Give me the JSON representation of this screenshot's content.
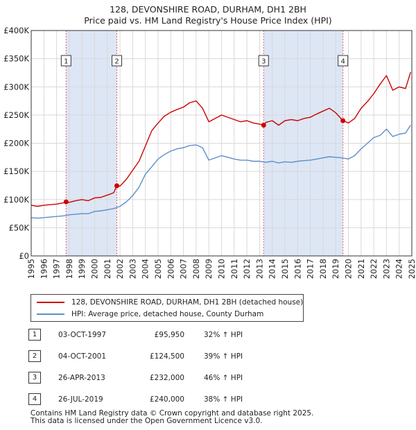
{
  "chart_data": {
    "type": "line",
    "title": "128, DEVONSHIRE ROAD, DURHAM, DH1 2BH",
    "subtitle": "Price paid vs. HM Land Registry's House Price Index (HPI)",
    "xlim": [
      1995,
      2025
    ],
    "ylim": [
      0,
      400000
    ],
    "x_ticks": [
      "1995",
      "1996",
      "1997",
      "1998",
      "1999",
      "2000",
      "2001",
      "2002",
      "2003",
      "2004",
      "2005",
      "2006",
      "2007",
      "2008",
      "2009",
      "2010",
      "2011",
      "2012",
      "2013",
      "2014",
      "2015",
      "2016",
      "2017",
      "2018",
      "2019",
      "2020",
      "2021",
      "2022",
      "2023",
      "2024",
      "2025"
    ],
    "y_ticks": [
      {
        "value": 0,
        "label": "£0"
      },
      {
        "value": 50000,
        "label": "£50K"
      },
      {
        "value": 100000,
        "label": "£100K"
      },
      {
        "value": 150000,
        "label": "£150K"
      },
      {
        "value": 200000,
        "label": "£200K"
      },
      {
        "value": 250000,
        "label": "£250K"
      },
      {
        "value": 300000,
        "label": "£300K"
      },
      {
        "value": 350000,
        "label": "£350K"
      },
      {
        "value": 400000,
        "label": "£400K"
      }
    ],
    "grid": true,
    "colors": {
      "property": "#cc0000",
      "hpi": "#5b8fc9",
      "shade": "#dde6f5",
      "vline": "#e06060"
    },
    "shaded_periods": [
      [
        1997.75,
        2001.75
      ],
      [
        2013.32,
        2019.57
      ]
    ],
    "series": [
      {
        "name": "128, DEVONSHIRE ROAD, DURHAM, DH1 2BH (detached house)",
        "color": "#cc0000",
        "x": [
          1995.0,
          1995.5,
          1996.0,
          1996.5,
          1997.0,
          1997.5,
          1997.75,
          1998.0,
          1998.5,
          1999.0,
          1999.5,
          2000.0,
          2000.5,
          2001.0,
          2001.5,
          2001.75,
          2002.0,
          2002.5,
          2003.0,
          2003.5,
          2004.0,
          2004.5,
          2005.0,
          2005.5,
          2006.0,
          2006.5,
          2007.0,
          2007.5,
          2008.0,
          2008.5,
          2009.0,
          2009.5,
          2010.0,
          2010.5,
          2011.0,
          2011.5,
          2012.0,
          2012.5,
          2013.0,
          2013.32,
          2013.5,
          2014.0,
          2014.5,
          2015.0,
          2015.5,
          2016.0,
          2016.5,
          2017.0,
          2017.5,
          2018.0,
          2018.5,
          2019.0,
          2019.57,
          2020.0,
          2020.5,
          2021.0,
          2021.5,
          2022.0,
          2022.5,
          2023.0,
          2023.5,
          2024.0,
          2024.5,
          2024.9
        ],
        "values": [
          90000,
          88000,
          90000,
          91000,
          92000,
          94000,
          95950,
          95000,
          98000,
          100000,
          98000,
          103000,
          104000,
          108000,
          112000,
          124500,
          124000,
          136000,
          152000,
          168000,
          195000,
          222000,
          236000,
          248000,
          255000,
          260000,
          264000,
          272000,
          275000,
          262000,
          238000,
          244000,
          250000,
          246000,
          242000,
          238000,
          240000,
          236000,
          234000,
          232000,
          237000,
          240000,
          232000,
          240000,
          242000,
          240000,
          244000,
          246000,
          252000,
          257000,
          262000,
          254000,
          240000,
          236000,
          244000,
          262000,
          274000,
          288000,
          305000,
          320000,
          294000,
          300000,
          297000,
          326000
        ]
      },
      {
        "name": "HPI: Average price, detached house, County Durham",
        "color": "#5b8fc9",
        "x": [
          1995.0,
          1995.5,
          1996.0,
          1996.5,
          1997.0,
          1997.5,
          1998.0,
          1998.5,
          1999.0,
          1999.5,
          2000.0,
          2000.5,
          2001.0,
          2001.5,
          2002.0,
          2002.5,
          2003.0,
          2003.5,
          2004.0,
          2004.5,
          2005.0,
          2005.5,
          2006.0,
          2006.5,
          2007.0,
          2007.5,
          2008.0,
          2008.5,
          2009.0,
          2009.5,
          2010.0,
          2010.5,
          2011.0,
          2011.5,
          2012.0,
          2012.5,
          2013.0,
          2013.5,
          2014.0,
          2014.5,
          2015.0,
          2015.5,
          2016.0,
          2016.5,
          2017.0,
          2017.5,
          2018.0,
          2018.5,
          2019.0,
          2019.5,
          2020.0,
          2020.5,
          2021.0,
          2021.5,
          2022.0,
          2022.5,
          2023.0,
          2023.5,
          2024.0,
          2024.5,
          2024.9
        ],
        "values": [
          68000,
          67000,
          68000,
          69000,
          70000,
          71000,
          73000,
          74000,
          75000,
          75000,
          79000,
          80000,
          82000,
          84000,
          88000,
          96000,
          107000,
          122000,
          145000,
          158000,
          172000,
          180000,
          186000,
          190000,
          192000,
          196000,
          197000,
          192000,
          170000,
          174000,
          178000,
          175000,
          172000,
          170000,
          170000,
          168000,
          168000,
          166000,
          168000,
          165000,
          167000,
          166000,
          168000,
          169000,
          170000,
          172000,
          174000,
          176000,
          175000,
          174000,
          172000,
          178000,
          190000,
          200000,
          210000,
          214000,
          225000,
          212000,
          216000,
          218000,
          232000
        ]
      }
    ],
    "sale_markers": [
      {
        "n": "1",
        "x": 1997.75,
        "value": 95950
      },
      {
        "n": "2",
        "x": 2001.75,
        "value": 124500
      },
      {
        "n": "3",
        "x": 2013.32,
        "value": 232000
      },
      {
        "n": "4",
        "x": 2019.57,
        "value": 240000
      }
    ]
  },
  "legend": {
    "property_label": "128, DEVONSHIRE ROAD, DURHAM, DH1 2BH (detached house)",
    "hpi_label": "HPI: Average price, detached house, County Durham"
  },
  "sales": [
    {
      "n": "1",
      "date": "03-OCT-1997",
      "price": "£95,950",
      "hpi": "32% ↑ HPI"
    },
    {
      "n": "2",
      "date": "04-OCT-2001",
      "price": "£124,500",
      "hpi": "39% ↑ HPI"
    },
    {
      "n": "3",
      "date": "26-APR-2013",
      "price": "£232,000",
      "hpi": "46% ↑ HPI"
    },
    {
      "n": "4",
      "date": "26-JUL-2019",
      "price": "£240,000",
      "hpi": "38% ↑ HPI"
    }
  ],
  "footer": {
    "line1": "Contains HM Land Registry data © Crown copyright and database right 2025.",
    "line2": "This data is licensed under the Open Government Licence v3.0."
  }
}
